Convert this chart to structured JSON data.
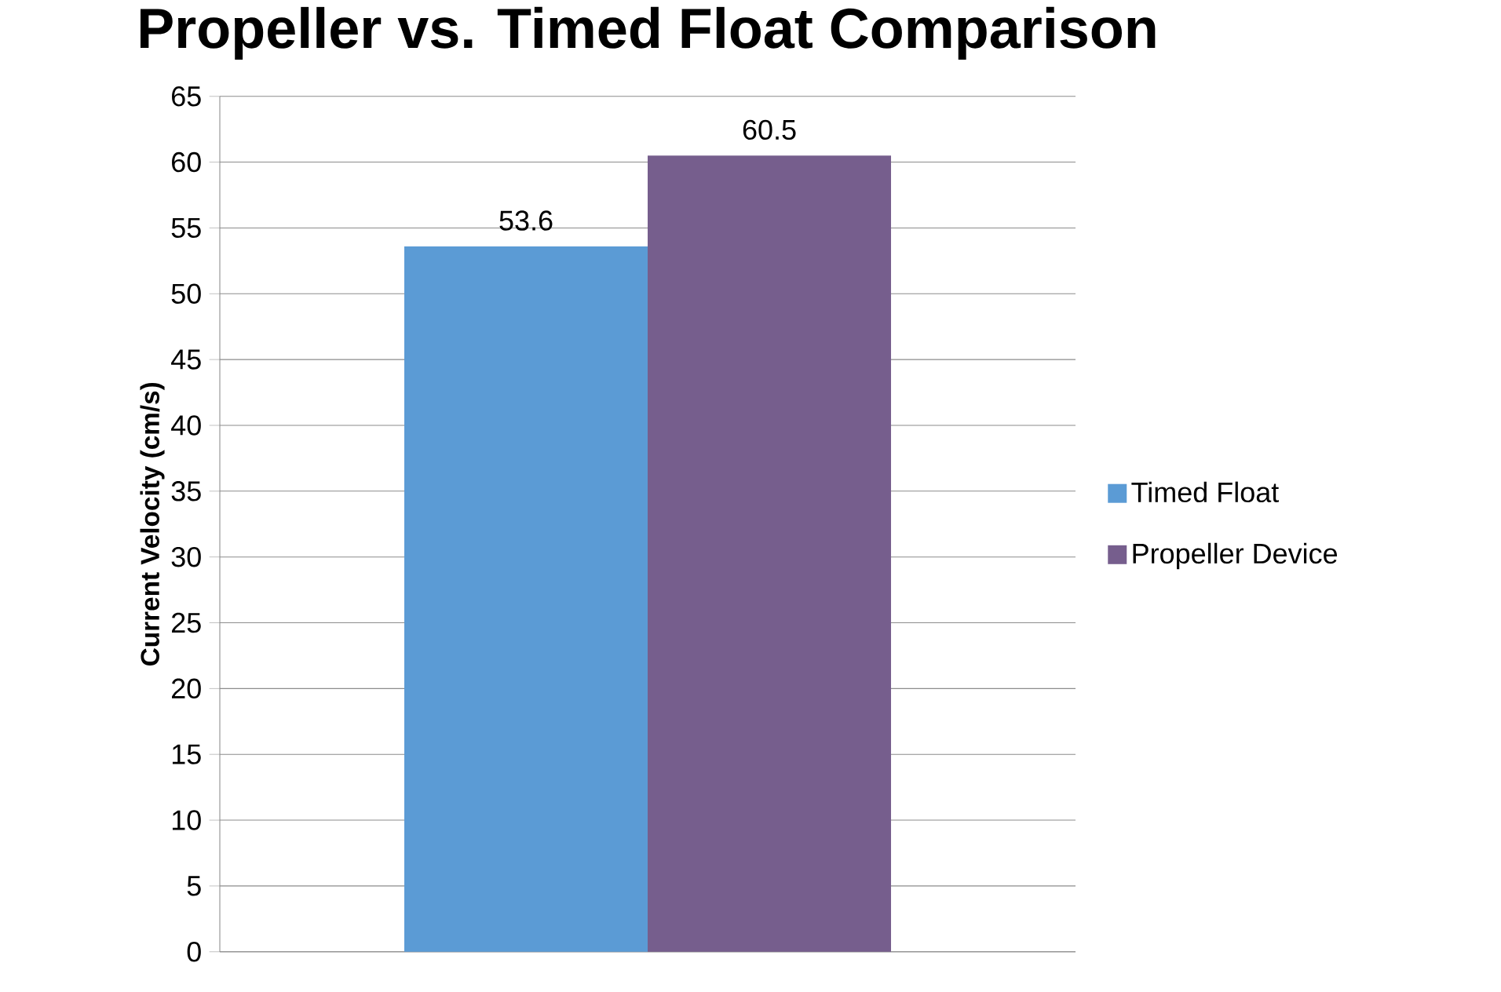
{
  "chart_data": {
    "type": "bar",
    "title": "Propeller vs. Timed Float Comparison",
    "ylabel": "Current Velocity (cm/s)",
    "categories": [
      null
    ],
    "series": [
      {
        "name": "Timed Float",
        "color": "#5b9bd5",
        "values": [
          53.6
        ]
      },
      {
        "name": "Propeller Device",
        "color": "#765e8d",
        "values": [
          60.5
        ]
      }
    ],
    "ylim": [
      0,
      65
    ],
    "yticks": [
      0,
      5,
      10,
      15,
      20,
      25,
      30,
      35,
      40,
      45,
      50,
      55,
      60,
      65
    ],
    "grid": "y",
    "legend": "right",
    "data_labels": true
  }
}
